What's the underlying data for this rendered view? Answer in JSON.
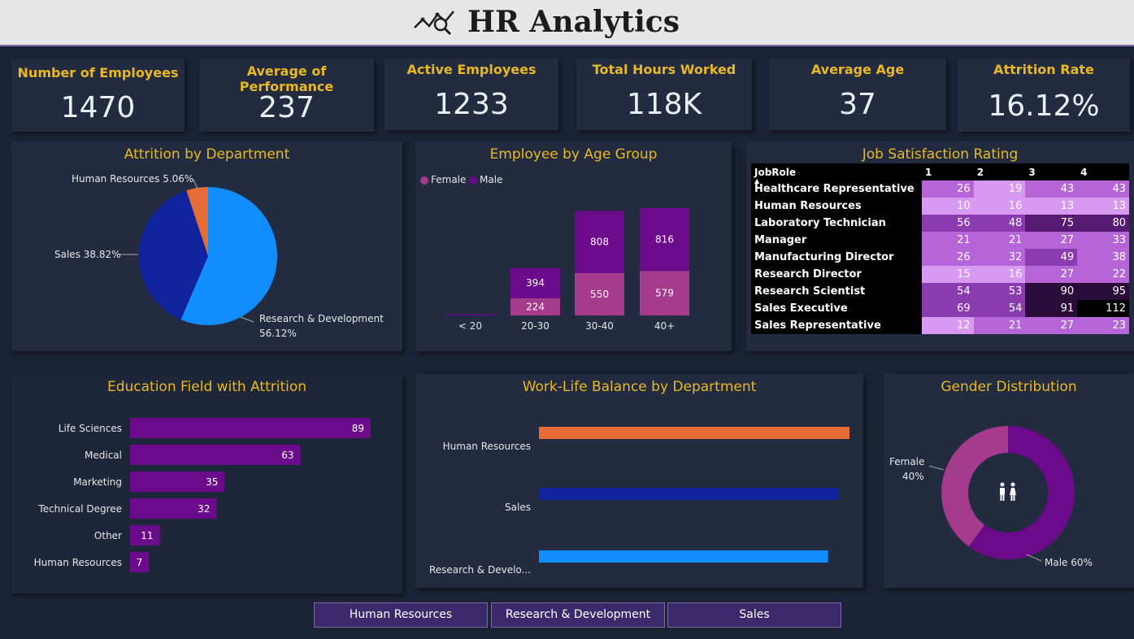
{
  "header": {
    "title": "HR Analytics",
    "icon": "analytics-chart-icon"
  },
  "kpis": [
    {
      "label": "Number of Employees",
      "value": "1470"
    },
    {
      "label": "Average of Performance",
      "value": "237"
    },
    {
      "label": "Active Employees",
      "value": "1233"
    },
    {
      "label": "Total Hours Worked",
      "value": "118K"
    },
    {
      "label": "Average Age",
      "value": "37"
    },
    {
      "label": "Attrition Rate",
      "value": "16.12%"
    }
  ],
  "attrition_by_department": {
    "title": "Attrition by Department",
    "labels": {
      "hr": "Human Resources 5.06%",
      "sales": "Sales 38.82%",
      "rd_line1": "Research & Development",
      "rd_line2": "56.12%"
    }
  },
  "age_group": {
    "title": "Employee by Age Group",
    "legend": {
      "female": "Female",
      "male": "Male"
    }
  },
  "job_satisfaction": {
    "title": "Job Satisfaction Rating",
    "header": {
      "role": "JobRole",
      "c1": "1",
      "c2": "2",
      "c3": "3",
      "c4": "4"
    },
    "rows": [
      {
        "role": "Healthcare Representative",
        "v1": "26",
        "v2": "19",
        "v3": "43",
        "v4": "43"
      },
      {
        "role": "Human Resources",
        "v1": "10",
        "v2": "16",
        "v3": "13",
        "v4": "13"
      },
      {
        "role": "Laboratory Technician",
        "v1": "56",
        "v2": "48",
        "v3": "75",
        "v4": "80"
      },
      {
        "role": "Manager",
        "v1": "21",
        "v2": "21",
        "v3": "27",
        "v4": "33"
      },
      {
        "role": "Manufacturing Director",
        "v1": "26",
        "v2": "32",
        "v3": "49",
        "v4": "38"
      },
      {
        "role": "Research Director",
        "v1": "15",
        "v2": "16",
        "v3": "27",
        "v4": "22"
      },
      {
        "role": "Research Scientist",
        "v1": "54",
        "v2": "53",
        "v3": "90",
        "v4": "95"
      },
      {
        "role": "Sales Executive",
        "v1": "69",
        "v2": "54",
        "v3": "91",
        "v4": "112"
      },
      {
        "role": "Sales Representative",
        "v1": "12",
        "v2": "21",
        "v3": "27",
        "v4": "23"
      }
    ]
  },
  "education_field": {
    "title": "Education Field with Attrition"
  },
  "work_life": {
    "title": "Work-Life Balance by Department"
  },
  "gender": {
    "title": "Gender Distribution",
    "female_label": "Female",
    "female_pct": "40%",
    "male_label": "Male 60%"
  },
  "slicer": {
    "buttons": [
      "Human Resources",
      "Research & Development",
      "Sales"
    ]
  },
  "chart_data": [
    {
      "type": "pie",
      "title": "Attrition by Department",
      "categories": [
        "Research & Development",
        "Sales",
        "Human Resources"
      ],
      "values": [
        56.12,
        38.82,
        5.06
      ],
      "colors": [
        "#118dff",
        "#12239e",
        "#e66c37"
      ]
    },
    {
      "type": "bar",
      "stacked": true,
      "title": "Employee by Age Group",
      "categories": [
        "< 20",
        "20-30",
        "30-40",
        "40+"
      ],
      "series": [
        {
          "name": "Female",
          "values": [
            0,
            224,
            550,
            579
          ],
          "color": "#a43b8c"
        },
        {
          "name": "Male",
          "values": [
            1,
            394,
            808,
            816
          ],
          "color": "#6b0a8a"
        }
      ],
      "legend": "top-left"
    },
    {
      "type": "bar",
      "orientation": "horizontal",
      "title": "Education Field with Attrition",
      "categories": [
        "Life Sciences",
        "Medical",
        "Marketing",
        "Technical Degree",
        "Other",
        "Human Resources"
      ],
      "values": [
        89,
        63,
        35,
        32,
        11,
        7
      ],
      "color": "#6b0a8a"
    },
    {
      "type": "bar",
      "orientation": "horizontal",
      "title": "Work-Life Balance by Department",
      "categories": [
        "Human Resources",
        "Sales",
        "Research & Develo..."
      ],
      "values": [
        2.9,
        2.8,
        2.7
      ],
      "colors": [
        "#e66c37",
        "#12239e",
        "#118dff"
      ]
    },
    {
      "type": "pie",
      "donut": true,
      "title": "Gender Distribution",
      "categories": [
        "Male",
        "Female"
      ],
      "values": [
        60,
        40
      ],
      "colors": [
        "#6b0a8a",
        "#a43b8c"
      ]
    }
  ]
}
